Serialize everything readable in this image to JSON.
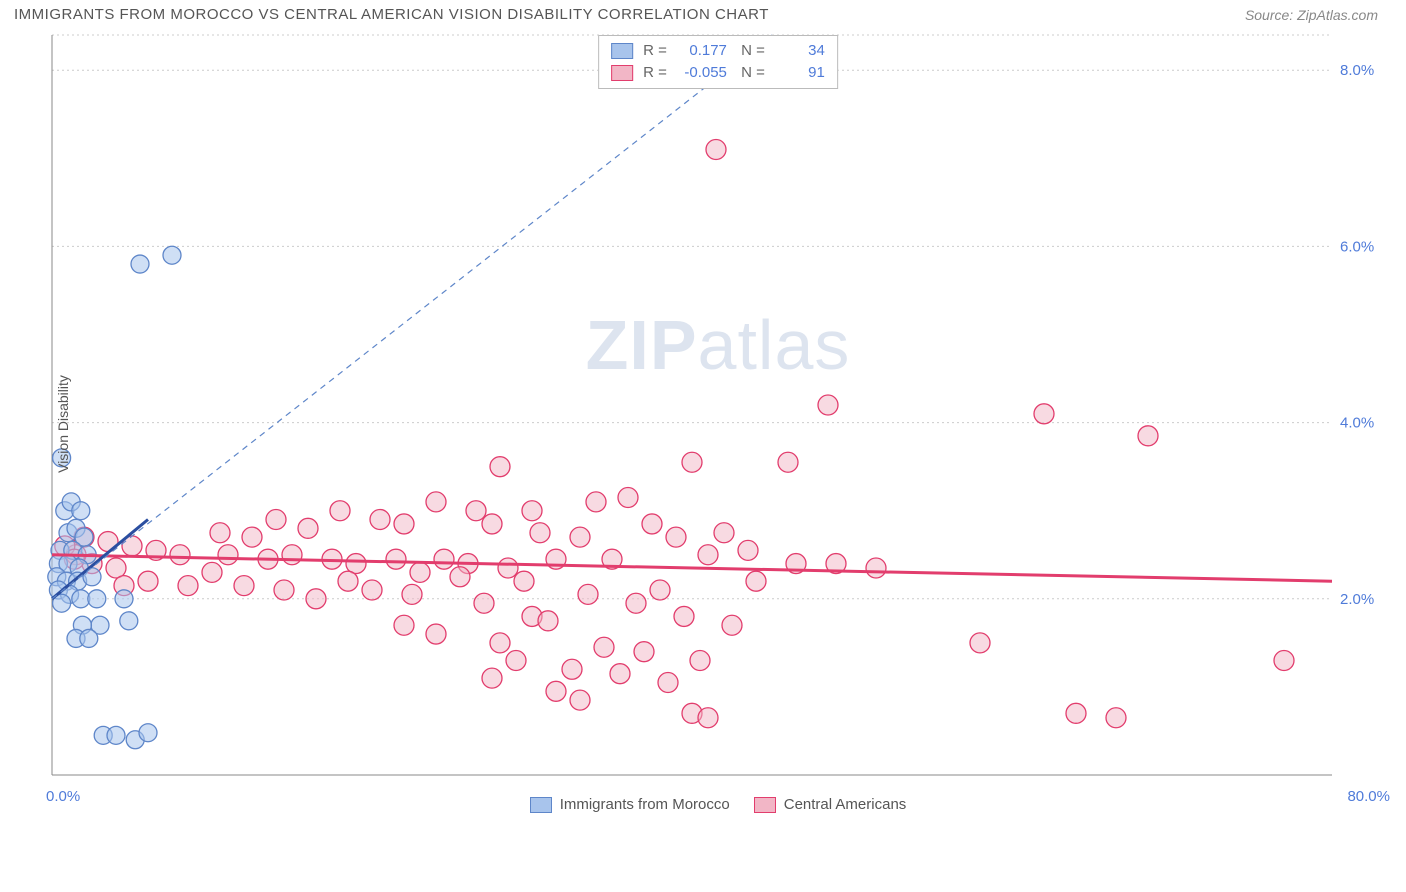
{
  "title": "IMMIGRANTS FROM MOROCCO VS CENTRAL AMERICAN VISION DISABILITY CORRELATION CHART",
  "source": "Source: ZipAtlas.com",
  "y_axis_label": "Vision Disability",
  "watermark_a": "ZIP",
  "watermark_b": "atlas",
  "chart": {
    "type": "scatter-correlation",
    "x_min": 0.0,
    "x_max": 80.0,
    "y_min": 0.0,
    "y_max": 8.4,
    "x_min_label": "0.0%",
    "x_max_label": "80.0%",
    "y_ticks": [
      2.0,
      4.0,
      6.0,
      8.0
    ],
    "y_tick_labels": [
      "2.0%",
      "4.0%",
      "6.0%",
      "8.0%"
    ],
    "grid_color": "#cccccc",
    "background_color": "#ffffff",
    "series": [
      {
        "name": "Immigrants from Morocco",
        "fill": "#a8c4ec",
        "stroke": "#5e86c9",
        "fill_opacity": 0.55,
        "marker_r": 9,
        "stats": {
          "R": "0.177",
          "N": "34"
        },
        "trend_solid": {
          "x1": 0.0,
          "y1": 2.0,
          "x2": 6.0,
          "y2": 2.9
        },
        "trend_dashed": {
          "x1": 0.0,
          "y1": 2.0,
          "x2": 45.0,
          "y2": 8.4
        },
        "points": [
          [
            5.5,
            5.8
          ],
          [
            7.5,
            5.9
          ],
          [
            0.6,
            3.6
          ],
          [
            0.8,
            3.0
          ],
          [
            1.2,
            3.1
          ],
          [
            1.8,
            3.0
          ],
          [
            1.0,
            2.75
          ],
          [
            1.5,
            2.8
          ],
          [
            2.0,
            2.7
          ],
          [
            0.5,
            2.55
          ],
          [
            1.3,
            2.55
          ],
          [
            2.2,
            2.5
          ],
          [
            0.4,
            2.4
          ],
          [
            1.0,
            2.4
          ],
          [
            1.7,
            2.35
          ],
          [
            0.3,
            2.25
          ],
          [
            0.9,
            2.2
          ],
          [
            1.6,
            2.2
          ],
          [
            2.5,
            2.25
          ],
          [
            0.4,
            2.1
          ],
          [
            1.1,
            2.05
          ],
          [
            1.8,
            2.0
          ],
          [
            0.6,
            1.95
          ],
          [
            2.8,
            2.0
          ],
          [
            4.5,
            2.0
          ],
          [
            3.0,
            1.7
          ],
          [
            1.9,
            1.7
          ],
          [
            4.8,
            1.75
          ],
          [
            1.5,
            1.55
          ],
          [
            2.3,
            1.55
          ],
          [
            3.2,
            0.45
          ],
          [
            4.0,
            0.45
          ],
          [
            5.2,
            0.4
          ],
          [
            6.0,
            0.48
          ]
        ]
      },
      {
        "name": "Central Americans",
        "fill": "#f2b6c6",
        "stroke": "#e23d6d",
        "fill_opacity": 0.5,
        "marker_r": 10,
        "stats": {
          "R": "-0.055",
          "N": "91"
        },
        "trend_solid": {
          "x1": 0.0,
          "y1": 2.5,
          "x2": 80.0,
          "y2": 2.2
        },
        "points": [
          [
            41.5,
            7.1
          ],
          [
            48.5,
            4.2
          ],
          [
            62.0,
            4.1
          ],
          [
            68.5,
            3.85
          ],
          [
            40.0,
            3.55
          ],
          [
            46.0,
            3.55
          ],
          [
            28.0,
            3.5
          ],
          [
            34.0,
            3.1
          ],
          [
            36.0,
            3.15
          ],
          [
            24.0,
            3.1
          ],
          [
            26.5,
            3.0
          ],
          [
            30.0,
            3.0
          ],
          [
            18.0,
            3.0
          ],
          [
            20.5,
            2.9
          ],
          [
            22.0,
            2.85
          ],
          [
            14.0,
            2.9
          ],
          [
            16.0,
            2.8
          ],
          [
            27.5,
            2.85
          ],
          [
            37.5,
            2.85
          ],
          [
            30.5,
            2.75
          ],
          [
            33.0,
            2.7
          ],
          [
            39.0,
            2.7
          ],
          [
            42.0,
            2.75
          ],
          [
            10.5,
            2.75
          ],
          [
            12.5,
            2.7
          ],
          [
            2.0,
            2.7
          ],
          [
            3.5,
            2.65
          ],
          [
            5.0,
            2.6
          ],
          [
            6.5,
            2.55
          ],
          [
            8.0,
            2.5
          ],
          [
            11.0,
            2.5
          ],
          [
            13.5,
            2.45
          ],
          [
            15.0,
            2.5
          ],
          [
            17.5,
            2.45
          ],
          [
            19.0,
            2.4
          ],
          [
            21.5,
            2.45
          ],
          [
            24.5,
            2.45
          ],
          [
            26.0,
            2.4
          ],
          [
            28.5,
            2.35
          ],
          [
            31.5,
            2.45
          ],
          [
            35.0,
            2.45
          ],
          [
            41.0,
            2.5
          ],
          [
            43.5,
            2.55
          ],
          [
            46.5,
            2.4
          ],
          [
            49.0,
            2.4
          ],
          [
            51.5,
            2.35
          ],
          [
            2.5,
            2.4
          ],
          [
            4.0,
            2.35
          ],
          [
            1.5,
            2.5
          ],
          [
            10.0,
            2.3
          ],
          [
            23.0,
            2.3
          ],
          [
            25.5,
            2.25
          ],
          [
            29.5,
            2.2
          ],
          [
            18.5,
            2.2
          ],
          [
            20.0,
            2.1
          ],
          [
            22.5,
            2.05
          ],
          [
            44.0,
            2.2
          ],
          [
            38.0,
            2.1
          ],
          [
            33.5,
            2.05
          ],
          [
            16.5,
            2.0
          ],
          [
            27.0,
            1.95
          ],
          [
            30.0,
            1.8
          ],
          [
            31.0,
            1.75
          ],
          [
            36.5,
            1.95
          ],
          [
            39.5,
            1.8
          ],
          [
            42.5,
            1.7
          ],
          [
            22.0,
            1.7
          ],
          [
            24.0,
            1.6
          ],
          [
            28.0,
            1.5
          ],
          [
            34.5,
            1.45
          ],
          [
            37.0,
            1.4
          ],
          [
            40.5,
            1.3
          ],
          [
            29.0,
            1.3
          ],
          [
            32.5,
            1.2
          ],
          [
            35.5,
            1.15
          ],
          [
            38.5,
            1.05
          ],
          [
            31.5,
            0.95
          ],
          [
            33.0,
            0.85
          ],
          [
            27.5,
            1.1
          ],
          [
            40.0,
            0.7
          ],
          [
            41.0,
            0.65
          ],
          [
            58.0,
            1.5
          ],
          [
            77.0,
            1.3
          ],
          [
            64.0,
            0.7
          ],
          [
            66.5,
            0.65
          ],
          [
            0.8,
            2.6
          ],
          [
            1.4,
            2.45
          ],
          [
            4.5,
            2.15
          ],
          [
            6.0,
            2.2
          ],
          [
            8.5,
            2.15
          ],
          [
            14.5,
            2.1
          ],
          [
            12.0,
            2.15
          ]
        ]
      }
    ],
    "legend_bottom": [
      {
        "label": "Immigrants from Morocco",
        "fill": "#a8c4ec",
        "stroke": "#5e86c9"
      },
      {
        "label": "Central Americans",
        "fill": "#f2b6c6",
        "stroke": "#e23d6d"
      }
    ]
  }
}
